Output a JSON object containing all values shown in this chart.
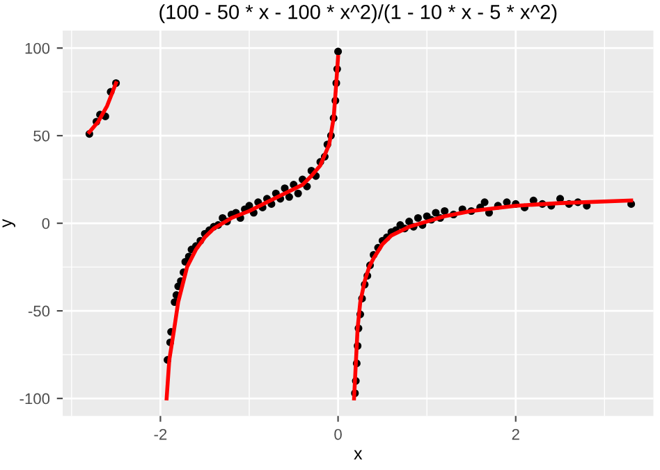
{
  "chart_data": {
    "type": "scatter",
    "title": "(100 - 50 * x - 100 * x^2)/(1 - 10 * x - 5 * x^2)",
    "xlabel": "x",
    "ylabel": "y",
    "xlim": [
      -3.1,
      3.55
    ],
    "ylim": [
      -110,
      110
    ],
    "xticks": [
      -2,
      0,
      2
    ],
    "yticks": [
      -100,
      -50,
      0,
      50,
      100
    ],
    "grid": true,
    "series": [
      {
        "color": "#000000",
        "marker": "circle",
        "x": [
          -2.8,
          -2.72,
          -2.68,
          -2.62,
          -2.56,
          -2.5,
          -1.92,
          -1.89,
          -1.88,
          -1.84,
          -1.82,
          -1.8,
          -1.77,
          -1.74,
          -1.72,
          -1.68,
          -1.65,
          -1.6,
          -1.55,
          -1.5,
          -1.45,
          -1.4,
          -1.35,
          -1.3,
          -1.25,
          -1.2,
          -1.15,
          -1.1,
          -1.05,
          -1,
          -0.95,
          -0.9,
          -0.85,
          -0.8,
          -0.75,
          -0.7,
          -0.65,
          -0.6,
          -0.55,
          -0.5,
          -0.45,
          -0.4,
          -0.35,
          -0.3,
          -0.25,
          -0.2,
          -0.15,
          -0.12,
          -0.08,
          -0.05,
          -0.03,
          -0.02,
          -0.01,
          0,
          0.19,
          0.2,
          0.21,
          0.22,
          0.23,
          0.25,
          0.27,
          0.3,
          0.33,
          0.36,
          0.4,
          0.45,
          0.5,
          0.55,
          0.6,
          0.65,
          0.7,
          0.75,
          0.8,
          0.85,
          0.9,
          0.95,
          1,
          1.05,
          1.1,
          1.15,
          1.2,
          1.3,
          1.4,
          1.5,
          1.6,
          1.65,
          1.7,
          1.8,
          1.9,
          2,
          2.1,
          2.2,
          2.3,
          2.4,
          2.5,
          2.6,
          2.7,
          2.8,
          3.3
        ],
        "values": [
          51,
          58,
          62,
          61,
          75,
          80,
          -78,
          -68,
          -62,
          -45,
          -41,
          -36,
          -33,
          -28,
          -22,
          -19,
          -15,
          -13,
          -10,
          -6,
          -4,
          -2,
          -1,
          3,
          1,
          5,
          6,
          3,
          8,
          10,
          6,
          12,
          9,
          14,
          11,
          17,
          14,
          20,
          15,
          22,
          17,
          25,
          21,
          30,
          27,
          35,
          38,
          45,
          50,
          60,
          70,
          80,
          88,
          98,
          -97,
          -90,
          -80,
          -70,
          -60,
          -52,
          -43,
          -35,
          -30,
          -24,
          -18,
          -14,
          -10,
          -8,
          -5,
          -4,
          -1,
          -3,
          1,
          -2,
          3,
          -1,
          4,
          2,
          6,
          3,
          7,
          5,
          8,
          7,
          9,
          12,
          6,
          10,
          12,
          11,
          9,
          13,
          11,
          10,
          14,
          11,
          12,
          10,
          11
        ]
      },
      {
        "type": "line",
        "color": "#ff0000",
        "marker": "none",
        "line_style": "solid",
        "x": [
          -2.8,
          -2.7,
          -2.6,
          -2.5,
          -2.2,
          -1.93,
          -1.9,
          -1.85,
          -1.8,
          -1.75,
          -1.7,
          -1.6,
          -1.5,
          -1.4,
          -1.2,
          -1,
          -0.8,
          -0.6,
          -0.4,
          -0.3,
          -0.2,
          -0.1,
          -0.05,
          -0.02,
          0,
          0.1,
          0.18,
          0.2,
          0.22,
          0.25,
          0.3,
          0.35,
          0.4,
          0.5,
          0.6,
          0.8,
          1,
          1.2,
          1.5,
          2,
          2.5,
          3.3
        ],
        "values": [
          52,
          58,
          67,
          80,
          null,
          -100,
          -78,
          -62,
          -45,
          -35,
          -25,
          -15,
          -8,
          -3,
          3,
          7,
          12,
          17,
          22,
          27,
          33,
          45,
          60,
          80,
          95,
          null,
          -100,
          -80,
          -60,
          -45,
          -33,
          -25,
          -20,
          -12,
          -7,
          -2,
          1,
          4,
          7,
          10,
          11.5,
          13
        ]
      }
    ]
  }
}
